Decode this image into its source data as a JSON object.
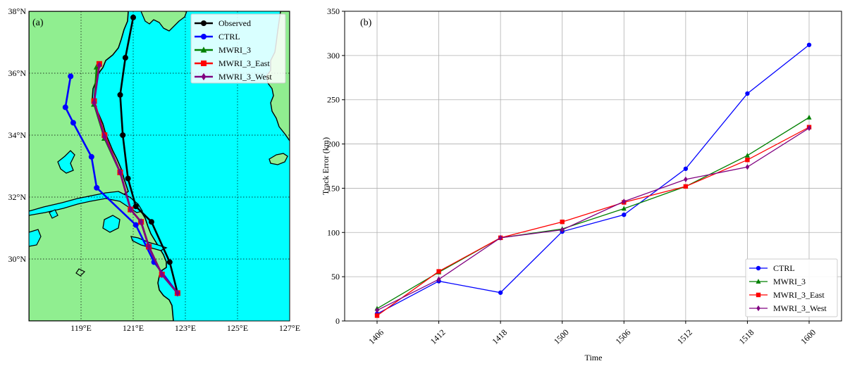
{
  "panel_a": {
    "label": "(a)",
    "x_ticks": [
      "119°E",
      "121°E",
      "123°E",
      "125°E",
      "127°E"
    ],
    "y_ticks": [
      "30°N",
      "32°N",
      "34°N",
      "36°N",
      "38°N"
    ],
    "colors": {
      "ocean": "#00ffff",
      "land": "#90ee90",
      "grid": "#000000"
    }
  },
  "panel_b": {
    "label": "(b)"
  },
  "chart_data": [
    {
      "type": "line",
      "subtype": "map-track",
      "xlim": [
        117,
        127
      ],
      "ylim": [
        28,
        38
      ],
      "x_unit": "°E",
      "y_unit": "°N",
      "grid": true,
      "legend_position": "top-right",
      "series": [
        {
          "name": "Observed",
          "color": "#000000",
          "marker": "circle",
          "lon": [
            121.0,
            120.7,
            120.5,
            120.6,
            120.8,
            121.1,
            121.7,
            122.4,
            122.7
          ],
          "lat": [
            37.8,
            36.5,
            35.3,
            34.0,
            32.6,
            31.7,
            31.2,
            29.9,
            28.9
          ]
        },
        {
          "name": "CTRL",
          "color": "#0000ff",
          "marker": "circle",
          "lon": [
            118.6,
            118.4,
            118.7,
            119.4,
            119.6,
            121.1,
            121.8,
            122.7
          ],
          "lat": [
            35.9,
            34.9,
            34.4,
            33.3,
            32.3,
            31.1,
            29.9,
            28.9
          ]
        },
        {
          "name": "MWRI_3",
          "color": "#008000",
          "marker": "triangle",
          "lon": [
            119.6,
            119.5,
            119.9,
            120.5,
            120.9,
            121.3,
            121.6,
            122.1,
            122.7
          ],
          "lat": [
            36.2,
            35.0,
            33.9,
            32.8,
            31.6,
            31.2,
            30.4,
            29.5,
            28.9
          ]
        },
        {
          "name": "MWRI_3_East",
          "color": "#ff0000",
          "marker": "square",
          "lon": [
            119.7,
            119.5,
            119.9,
            120.5,
            120.9,
            121.3,
            121.6,
            122.1,
            122.7
          ],
          "lat": [
            36.3,
            35.1,
            34.0,
            32.8,
            31.6,
            31.2,
            30.4,
            29.5,
            28.9
          ]
        },
        {
          "name": "MWRI_3_West",
          "color": "#800080",
          "marker": "diamond",
          "lon": [
            119.7,
            119.5,
            119.9,
            120.5,
            120.9,
            121.3,
            121.6,
            122.1,
            122.7
          ],
          "lat": [
            36.25,
            35.05,
            33.95,
            32.8,
            31.6,
            31.2,
            30.4,
            29.5,
            28.9
          ]
        }
      ]
    },
    {
      "type": "line",
      "categories": [
        "1406",
        "1412",
        "1418",
        "1500",
        "1506",
        "1512",
        "1518",
        "1600"
      ],
      "xlabel": "Time",
      "ylabel": "Track Error (km)",
      "ylim": [
        0,
        350
      ],
      "yticks": [
        0,
        50,
        100,
        150,
        200,
        250,
        300,
        350
      ],
      "grid": true,
      "legend_position": "bottom-right",
      "series": [
        {
          "name": "CTRL",
          "color": "#0000ff",
          "marker": "circle",
          "values": [
            8,
            45,
            32,
            101,
            120,
            172,
            257,
            312
          ]
        },
        {
          "name": "MWRI_3",
          "color": "#008000",
          "marker": "triangle",
          "values": [
            14,
            55,
            94,
            104,
            127,
            152,
            187,
            230
          ]
        },
        {
          "name": "MWRI_3_East",
          "color": "#ff0000",
          "marker": "square",
          "values": [
            6,
            56,
            94,
            112,
            134,
            152,
            182,
            219
          ]
        },
        {
          "name": "MWRI_3_West",
          "color": "#800080",
          "marker": "diamond",
          "values": [
            12,
            47,
            94,
            103,
            135,
            160,
            174,
            218
          ]
        }
      ]
    }
  ]
}
